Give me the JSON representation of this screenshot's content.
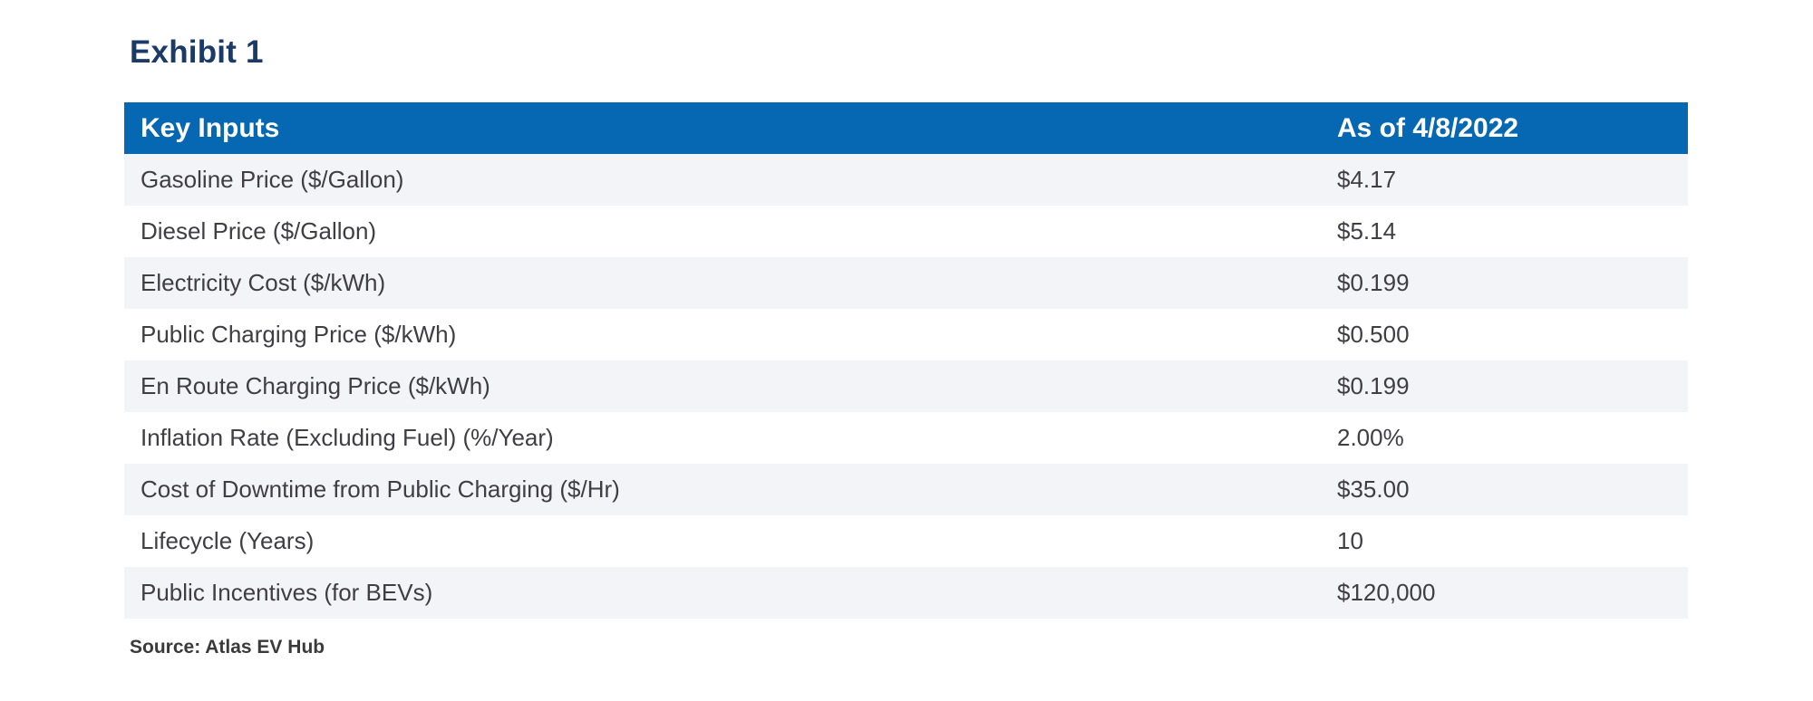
{
  "exhibit": {
    "title": "Exhibit 1",
    "source": "Source: Atlas EV Hub"
  },
  "table": {
    "header": {
      "col1": "Key Inputs",
      "col2": "As of 4/8/2022"
    },
    "rows": [
      {
        "label": "Gasoline Price ($/Gallon)",
        "value": "$4.17"
      },
      {
        "label": "Diesel Price ($/Gallon)",
        "value": "$5.14"
      },
      {
        "label": "Electricity Cost ($/kWh)",
        "value": "$0.199"
      },
      {
        "label": "Public Charging Price ($/kWh)",
        "value": "$0.500"
      },
      {
        "label": "En Route Charging Price ($/kWh)",
        "value": "$0.199"
      },
      {
        "label": "Inflation Rate (Excluding Fuel) (%/Year)",
        "value": "2.00%"
      },
      {
        "label": "Cost of Downtime from Public Charging ($/Hr)",
        "value": "$35.00"
      },
      {
        "label": "Lifecycle (Years)",
        "value": "10"
      },
      {
        "label": "Public Incentives (for BEVs)",
        "value": "$120,000"
      }
    ]
  },
  "colors": {
    "header_background": "#0667B2",
    "header_text": "#FFFFFF",
    "title_text": "#1C3A68",
    "row_alt_background": "#F3F4F8",
    "row_plain_background": "#FFFFFF",
    "body_text": "#3E3E43",
    "source_text": "#3A3A3A",
    "page_background": "#FFFFFF"
  }
}
